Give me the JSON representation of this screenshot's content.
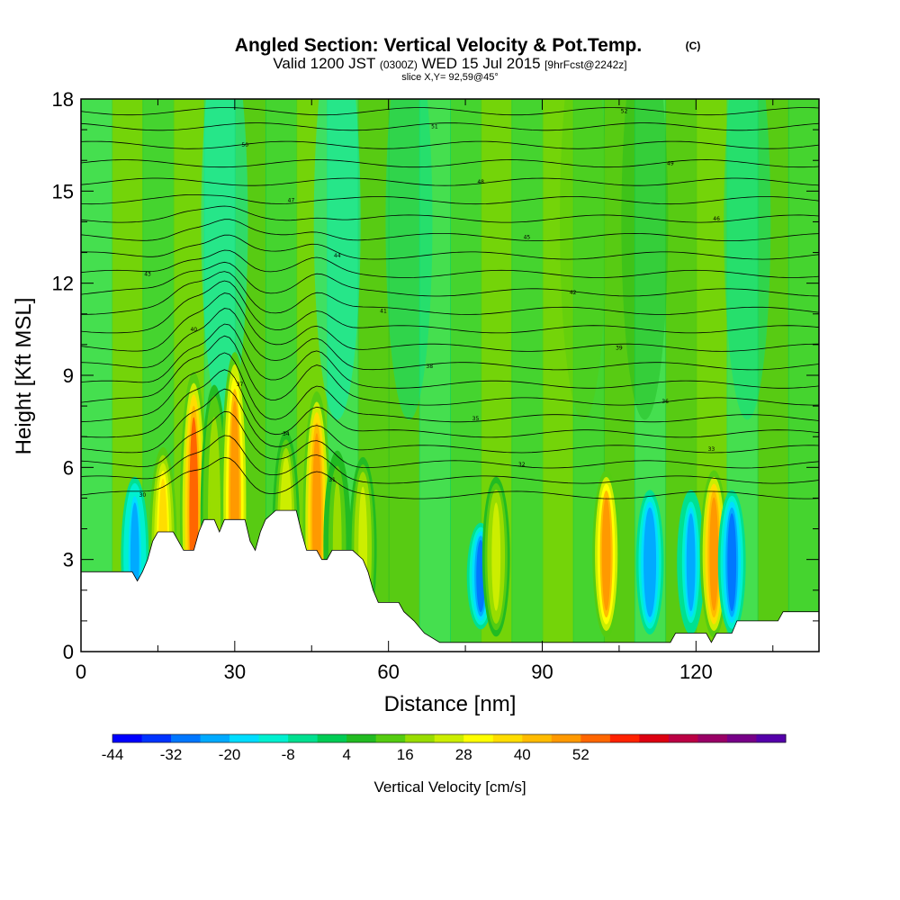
{
  "chart_data": {
    "type": "heatmap",
    "title": "Angled Section: Vertical Velocity & Pot.Temp.",
    "title_unit": "(C)",
    "subtitle": {
      "valid_text": "Valid 1200 JST",
      "utc_text": "(0300Z)",
      "date_text": "WED 15 Jul 2015",
      "forecast_text": "[9hrFcst@2242z]",
      "slice_text": "slice X,Y= 92,59@45°"
    },
    "xlabel": "Distance [nm]",
    "ylabel": "Height [Kft MSL]",
    "xlim": [
      0,
      144
    ],
    "ylim": [
      0,
      18
    ],
    "x_ticks": [
      "0",
      "30",
      "60",
      "90",
      "120"
    ],
    "y_ticks": [
      "0",
      "3",
      "6",
      "9",
      "12",
      "15",
      "18"
    ],
    "colorbar": {
      "label": "Vertical Velocity [cm/s]",
      "tick_labels": [
        "-44",
        "-32",
        "-20",
        "-8",
        "4",
        "16",
        "28",
        "40",
        "52"
      ],
      "colors": [
        "#0000ff",
        "#0033ff",
        "#0077ff",
        "#00aaff",
        "#00ddff",
        "#00f0d0",
        "#00e090",
        "#00cc55",
        "#22bb22",
        "#55cc11",
        "#99dd00",
        "#ccee00",
        "#ffff00",
        "#ffdd00",
        "#ffbb00",
        "#ff9900",
        "#ff6600",
        "#ff2200",
        "#dd0011",
        "#bb0044",
        "#990066",
        "#770088",
        "#5500aa"
      ]
    },
    "updraft_columns": [
      {
        "x": 10.5,
        "top": 5.4,
        "w": -26
      },
      {
        "x": 16,
        "top": 6.3,
        "w": 36
      },
      {
        "x": 22,
        "top": 8.6,
        "w": 50
      },
      {
        "x": 26,
        "top": 8.2,
        "w": 18
      },
      {
        "x": 30,
        "top": 9.2,
        "w": 44
      },
      {
        "x": 40,
        "top": 6.8,
        "w": 24
      },
      {
        "x": 46,
        "top": 8.0,
        "w": 48
      },
      {
        "x": 50,
        "top": 6.2,
        "w": 14
      },
      {
        "x": 55,
        "top": 6.0,
        "w": 20
      },
      {
        "x": 78,
        "top": 4.0,
        "w": -30
      },
      {
        "x": 81,
        "top": 5.4,
        "w": 22
      },
      {
        "x": 102.5,
        "top": 5.6,
        "w": 44
      },
      {
        "x": 111,
        "top": 5.0,
        "w": -28
      },
      {
        "x": 119,
        "top": 5.0,
        "w": -24
      },
      {
        "x": 123.5,
        "top": 5.6,
        "w": 48
      },
      {
        "x": 127,
        "top": 5.0,
        "w": -34
      }
    ],
    "theta_isolines": [
      {
        "base": 5.1,
        "label": "30"
      },
      {
        "base": 5.6,
        "label": "31"
      },
      {
        "base": 6.1,
        "label": "32"
      },
      {
        "base": 6.6,
        "label": "33"
      },
      {
        "base": 7.1,
        "label": "34"
      },
      {
        "base": 7.6,
        "label": "35"
      },
      {
        "base": 8.15,
        "label": "36"
      },
      {
        "base": 8.7,
        "label": "37"
      },
      {
        "base": 9.3,
        "label": "38"
      },
      {
        "base": 9.9,
        "label": "39"
      },
      {
        "base": 10.5,
        "label": "40"
      },
      {
        "base": 11.1,
        "label": "41"
      },
      {
        "base": 11.7,
        "label": "42"
      },
      {
        "base": 12.3,
        "label": "43"
      },
      {
        "base": 12.9,
        "label": "44"
      },
      {
        "base": 13.5,
        "label": "45"
      },
      {
        "base": 14.1,
        "label": "46"
      },
      {
        "base": 14.7,
        "label": "47"
      },
      {
        "base": 15.3,
        "label": "48"
      },
      {
        "base": 15.9,
        "label": "49"
      },
      {
        "base": 16.5,
        "label": "50"
      },
      {
        "base": 17.1,
        "label": "51"
      },
      {
        "base": 17.6,
        "label": "52"
      }
    ],
    "terrain": [
      [
        0,
        2.6
      ],
      [
        10,
        2.6
      ],
      [
        11,
        2.3
      ],
      [
        12,
        2.6
      ],
      [
        13,
        3.0
      ],
      [
        14,
        3.6
      ],
      [
        15,
        3.9
      ],
      [
        18,
        3.9
      ],
      [
        19,
        3.6
      ],
      [
        20,
        3.3
      ],
      [
        22,
        3.3
      ],
      [
        23,
        3.9
      ],
      [
        24,
        4.3
      ],
      [
        26,
        4.3
      ],
      [
        27,
        3.9
      ],
      [
        28,
        4.3
      ],
      [
        32,
        4.3
      ],
      [
        33,
        3.6
      ],
      [
        34,
        3.3
      ],
      [
        35,
        3.9
      ],
      [
        36,
        4.3
      ],
      [
        38,
        4.6
      ],
      [
        42,
        4.6
      ],
      [
        43,
        3.9
      ],
      [
        44,
        3.3
      ],
      [
        46,
        3.3
      ],
      [
        47,
        3.0
      ],
      [
        48,
        3.0
      ],
      [
        49,
        3.3
      ],
      [
        53,
        3.3
      ],
      [
        55,
        3.0
      ],
      [
        56,
        2.6
      ],
      [
        57,
        2.0
      ],
      [
        58,
        1.6
      ],
      [
        62,
        1.6
      ],
      [
        63,
        1.3
      ],
      [
        65,
        1.0
      ],
      [
        67,
        0.6
      ],
      [
        70,
        0.3
      ],
      [
        115,
        0.3
      ],
      [
        116,
        0.6
      ],
      [
        122,
        0.6
      ],
      [
        123,
        0.3
      ],
      [
        124,
        0.6
      ],
      [
        127,
        0.6
      ],
      [
        128,
        1.0
      ],
      [
        136,
        1.0
      ],
      [
        137,
        1.3
      ],
      [
        144,
        1.3
      ]
    ]
  }
}
